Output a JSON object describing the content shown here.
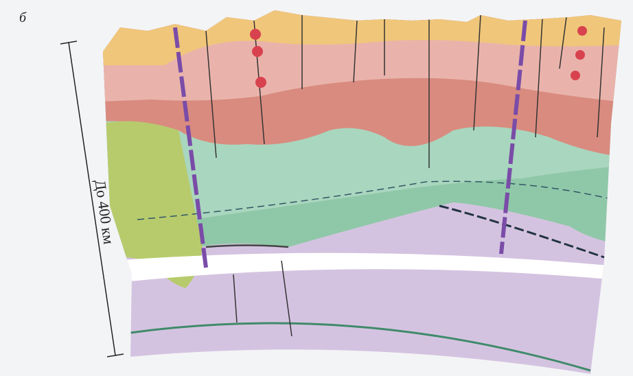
{
  "figure_label": "б",
  "scale_label": "До 400 км"
}
